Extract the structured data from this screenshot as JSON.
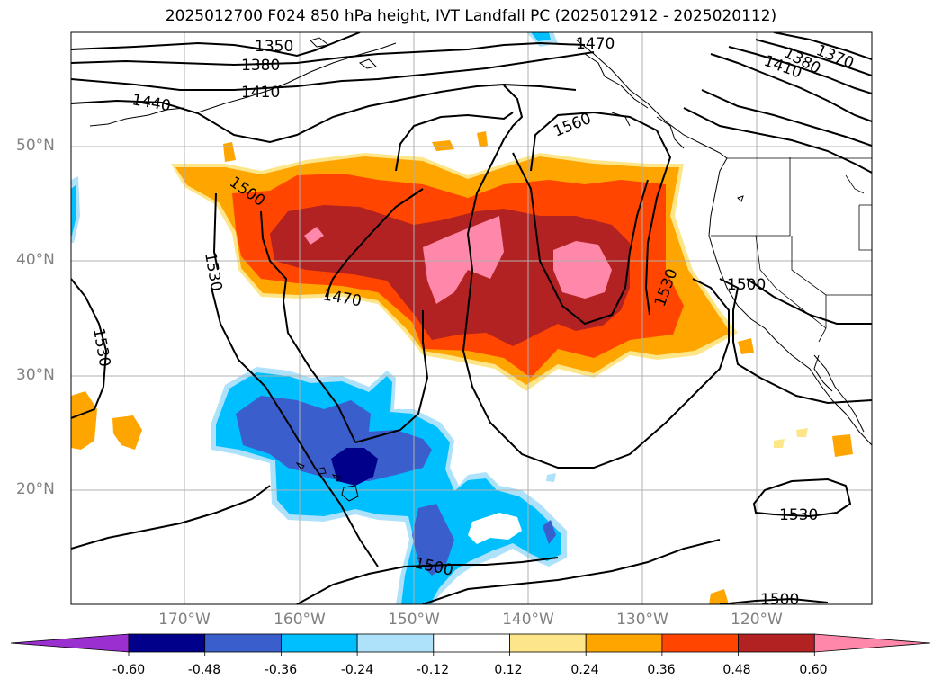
{
  "title": "2025012700 F024 850 hPa height, IVT Landfall PC (2025012912 - 2025020112)",
  "latitude_labels": [
    "50°N",
    "40°N",
    "30°N",
    "20°N"
  ],
  "longitude_labels": [
    "170°W",
    "160°W",
    "150°W",
    "140°W",
    "130°W",
    "120°W"
  ],
  "contour_labels": [
    "1350",
    "1380",
    "1410",
    "1440",
    "1470",
    "1500",
    "1530",
    "1560",
    "1370",
    "1380",
    "1410",
    "1500",
    "1530",
    "1470",
    "1500",
    "1530",
    "1500"
  ],
  "colorbar": {
    "ticks": [
      "-0.60",
      "-0.48",
      "-0.36",
      "-0.24",
      "-0.12",
      "0.12",
      "0.24",
      "0.36",
      "0.48",
      "0.60"
    ],
    "colors": [
      "#9b30d0",
      "#00008b",
      "#3a5fcd",
      "#00bfff",
      "#aee2fa",
      "#ffffff",
      "#fde68a",
      "#ffa500",
      "#ff4500",
      "#b22222",
      "#ff88aa"
    ]
  },
  "colors": {
    "ocean_lines": "#000000",
    "grid": "#b0b0b0"
  }
}
